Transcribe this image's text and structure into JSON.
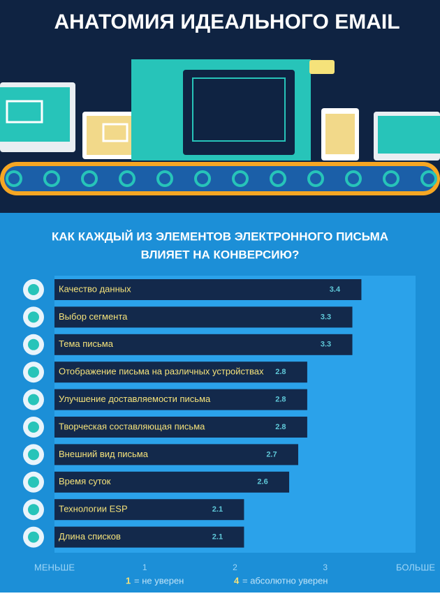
{
  "chart_data": {
    "type": "barh",
    "title": "АНАТОМИЯ ИДЕАЛЬНОГО EMAIL",
    "subtitle": [
      "КАК КАЖДЫЙ ИЗ ЭЛЕМЕНТОВ ЭЛЕКТРОННОГО ПИСЬМА",
      "ВЛИЯЕТ НА КОНВЕРСИЮ?"
    ],
    "categories": [
      "Качество данных",
      "Выбор сегмента",
      "Тема письма",
      "Отображение письма на различных устройствах",
      "Улучшение доставляемости письма",
      "Творческая составляющая письма",
      "Внешний вид письма",
      "Время суток",
      "Технологии ESP",
      "Длина списков"
    ],
    "values": [
      3.4,
      3.3,
      3.3,
      2.8,
      2.8,
      2.8,
      2.7,
      2.6,
      2.1,
      2.1
    ],
    "color": "#13294b",
    "xlim": [
      0,
      4
    ],
    "xticks": [
      {
        "value": 0,
        "label": "МЕНЬШЕ"
      },
      1,
      2,
      3,
      {
        "value": 4,
        "label": "БОЛЬШЕ"
      }
    ],
    "grid": false,
    "legend_notes": [
      {
        "key": "1",
        "text": "= не уверен"
      },
      {
        "key": "4",
        "text": "= абсолютно уверен"
      }
    ]
  }
}
